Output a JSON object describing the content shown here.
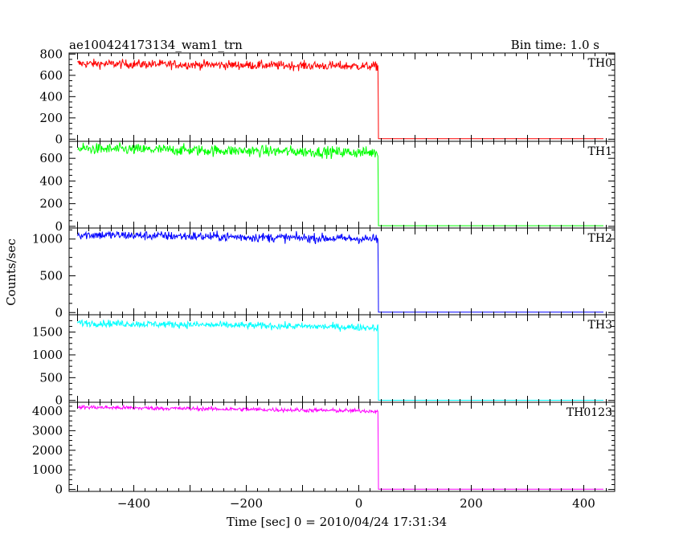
{
  "header": {
    "title": "ae100424173134_wam1_trn",
    "bin_time": "Bin time: 1.0 s"
  },
  "chart_data": {
    "type": "line",
    "xlabel": "Time [sec] 0 = 2010/04/24 17:31:34",
    "ylabel": "Counts/sec",
    "xlim": [
      -515,
      455
    ],
    "x_ticks": [
      -400,
      -200,
      0,
      200,
      400
    ],
    "x_tick_labels": [
      "−400",
      "−200",
      "0",
      "200",
      "400"
    ],
    "drop_time": 34,
    "data_range": [
      -500,
      435
    ],
    "panels": [
      {
        "name": "TH0",
        "color": "#ff0000",
        "ylim": [
          -20,
          810
        ],
        "ticks": [
          0,
          200,
          400,
          600,
          800
        ],
        "tick_labels": [
          "0",
          "200",
          "400",
          "600",
          "800"
        ],
        "level_start": 710,
        "level_end": 685,
        "noise": 30,
        "after": 5
      },
      {
        "name": "TH1",
        "color": "#00ff00",
        "ylim": [
          -15,
          750
        ],
        "ticks": [
          0,
          200,
          400,
          600
        ],
        "tick_labels": [
          "0",
          "200",
          "400",
          "600"
        ],
        "level_start": 685,
        "level_end": 650,
        "noise": 35,
        "after": 5
      },
      {
        "name": "TH2",
        "color": "#0000ff",
        "ylim": [
          -30,
          1150
        ],
        "ticks": [
          0,
          500,
          1000
        ],
        "tick_labels": [
          "0",
          "500",
          "1000"
        ],
        "level_start": 1060,
        "level_end": 1000,
        "noise": 45,
        "after": 5
      },
      {
        "name": "TH3",
        "color": "#00ffff",
        "ylim": [
          -40,
          1880
        ],
        "ticks": [
          0,
          500,
          1000,
          1500
        ],
        "tick_labels": [
          "0",
          "500",
          "1000",
          "1500"
        ],
        "level_start": 1700,
        "level_end": 1600,
        "noise": 55,
        "after": 5
      },
      {
        "name": "TH0123",
        "color": "#ff00ff",
        "ylim": [
          -100,
          4450
        ],
        "ticks": [
          0,
          1000,
          2000,
          3000,
          4000
        ],
        "tick_labels": [
          "0",
          "1000",
          "2000",
          "3000",
          "4000"
        ],
        "level_start": 4200,
        "level_end": 4000,
        "noise": 75,
        "after": 15
      }
    ]
  }
}
